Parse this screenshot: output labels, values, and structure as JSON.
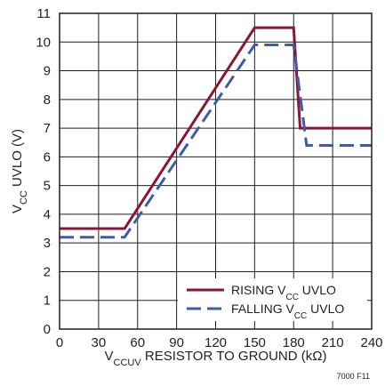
{
  "chart_data": {
    "type": "line",
    "xlabel": {
      "prefix": "V",
      "sub": "CCUV",
      "rest": " RESISTOR TO GROUND (kΩ)"
    },
    "ylabel": {
      "prefix": "V",
      "sub": "CC",
      "rest": " UVLO (V)"
    },
    "xlim": [
      0,
      240
    ],
    "ylim": [
      0,
      11
    ],
    "xticks": [
      "0",
      "30",
      "60",
      "90",
      "120",
      "150",
      "180",
      "210",
      "240"
    ],
    "yticks": [
      "0",
      "1",
      "2",
      "3",
      "4",
      "5",
      "6",
      "7",
      "8",
      "9",
      "10",
      "11"
    ],
    "grid": true,
    "legend_position": "bottom-right",
    "figure_id": "7000 F11",
    "series": [
      {
        "name": "RISING VCC UVLO",
        "legend": {
          "prefix": "RISING V",
          "sub": "CC",
          "rest": " UVLO"
        },
        "color": "#8b1538",
        "style": "solid",
        "x": [
          0,
          50,
          150,
          180,
          185,
          240
        ],
        "y": [
          3.5,
          3.5,
          10.5,
          10.5,
          7.0,
          7.0
        ]
      },
      {
        "name": "FALLING VCC UVLO",
        "legend": {
          "prefix": "FALLING V",
          "sub": "CC",
          "rest": " UVLO"
        },
        "color": "#3f5ba9",
        "style": "dashed",
        "x": [
          0,
          50,
          150,
          180,
          190,
          240
        ],
        "y": [
          3.2,
          3.2,
          9.9,
          9.9,
          6.4,
          6.4
        ]
      }
    ]
  }
}
